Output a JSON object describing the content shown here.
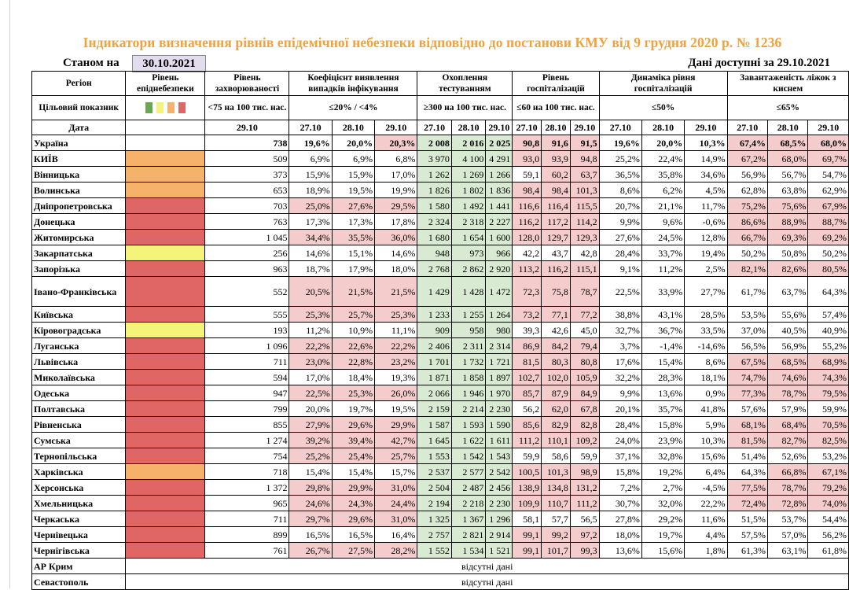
{
  "title": "Індикатори визначення рівнів епідемічної небезпеки відповідно до постанови КМУ від 9 грудня 2020 р. № 1236",
  "as_of_label": "Станом на",
  "as_of_date": "30.10.2021",
  "available_label": "Дані доступні за  29.10.2021",
  "colors": {
    "red": "#e06666",
    "orange": "#f6b26b",
    "yellow": "#f4f47a",
    "highlight": "#f4cccc",
    "green": "#d9ead3",
    "green_swatch": "#6aa84f"
  },
  "header": {
    "region": "Регіон",
    "target": "Цільовий показник",
    "date": "Дата",
    "level": "Рівень епіднебезпеки",
    "incidence": "Рівень захворюваності",
    "incidence_target": "<75 на 100 тис. нас.",
    "incidence_date": "29.10",
    "detection": "Коефіцієнт виявлення випадків інфікування",
    "detection_target": "≤20% / <4%",
    "testing": "Охоплення тестуванням",
    "testing_target": "≥300 на 100 тис. нас.",
    "hosp": "Рівень госпіталізацій",
    "hosp_target": "≤60 на 100 тис. нас.",
    "dynamics": "Динаміка рівня госпіталізацій",
    "dynamics_target": "≤50%",
    "beds": "Завантаженість ліжок з киснем",
    "beds_target": "≤65%",
    "dates": [
      "27.10",
      "28.10",
      "29.10"
    ]
  },
  "rows": [
    {
      "name": "Україна",
      "level": "",
      "inc": "738",
      "det": [
        "19,6%",
        "20,0%",
        "20,3%"
      ],
      "tst": [
        "2 008",
        "2 016",
        "2 025"
      ],
      "hos": [
        "90,8",
        "91,6",
        "91,5"
      ],
      "dyn": [
        "19,6%",
        "20,0%",
        "10,3%"
      ],
      "bed": [
        "67,4%",
        "68,5%",
        "68,0%"
      ]
    },
    {
      "name": "КИЇВ",
      "level": "orange",
      "inc": "509",
      "det": [
        "6,9%",
        "6,9%",
        "6,8%"
      ],
      "tst": [
        "3 970",
        "4 100",
        "4 291"
      ],
      "hos": [
        "93,0",
        "93,9",
        "94,8"
      ],
      "dyn": [
        "25,2%",
        "22,4%",
        "14,9%"
      ],
      "bed": [
        "67,2%",
        "68,0%",
        "69,7%"
      ]
    },
    {
      "name": "Вінницька",
      "level": "orange",
      "inc": "373",
      "det": [
        "15,9%",
        "15,9%",
        "17,0%"
      ],
      "tst": [
        "1 262",
        "1 269",
        "1 266"
      ],
      "hos": [
        "59,1",
        "60,2",
        "63,7"
      ],
      "dyn": [
        "36,5%",
        "35,8%",
        "34,6%"
      ],
      "bed": [
        "56,9%",
        "56,7%",
        "54,7%"
      ]
    },
    {
      "name": "Волинська",
      "level": "orange",
      "inc": "653",
      "det": [
        "18,9%",
        "19,5%",
        "19,9%"
      ],
      "tst": [
        "1 826",
        "1 802",
        "1 836"
      ],
      "hos": [
        "98,4",
        "98,4",
        "101,3"
      ],
      "dyn": [
        "8,6%",
        "6,2%",
        "4,5%"
      ],
      "bed": [
        "62,8%",
        "63,8%",
        "62,9%"
      ]
    },
    {
      "name": "Дніпропетровська",
      "level": "red",
      "inc": "703",
      "det": [
        "25,0%",
        "27,6%",
        "29,5%"
      ],
      "tst": [
        "1 580",
        "1 492",
        "1 441"
      ],
      "hos": [
        "116,6",
        "116,4",
        "115,5"
      ],
      "dyn": [
        "20,7%",
        "21,1%",
        "11,7%"
      ],
      "bed": [
        "75,2%",
        "75,6%",
        "67,9%"
      ]
    },
    {
      "name": "Донецька",
      "level": "red",
      "inc": "763",
      "det": [
        "17,3%",
        "17,3%",
        "17,8%"
      ],
      "tst": [
        "2 324",
        "2 318",
        "2 227"
      ],
      "hos": [
        "116,2",
        "117,2",
        "114,2"
      ],
      "dyn": [
        "9,9%",
        "9,6%",
        "-0,6%"
      ],
      "bed": [
        "86,6%",
        "88,9%",
        "88,7%"
      ]
    },
    {
      "name": "Житомирська",
      "level": "red",
      "inc": "1 045",
      "det": [
        "34,4%",
        "35,5%",
        "36,0%"
      ],
      "tst": [
        "1 680",
        "1 654",
        "1 600"
      ],
      "hos": [
        "128,0",
        "129,7",
        "129,3"
      ],
      "dyn": [
        "27,6%",
        "24,5%",
        "12,8%"
      ],
      "bed": [
        "66,7%",
        "69,3%",
        "69,2%"
      ]
    },
    {
      "name": "Закарпатська",
      "level": "yellow",
      "inc": "256",
      "det": [
        "14,6%",
        "15,1%",
        "14,6%"
      ],
      "tst": [
        "948",
        "973",
        "966"
      ],
      "hos": [
        "42,2",
        "43,7",
        "42,8"
      ],
      "dyn": [
        "28,4%",
        "33,7%",
        "19,4%"
      ],
      "bed": [
        "50,2%",
        "50,8%",
        "50,2%"
      ]
    },
    {
      "name": "Запорізька",
      "level": "red",
      "inc": "963",
      "det": [
        "18,7%",
        "17,9%",
        "18,0%"
      ],
      "tst": [
        "2 768",
        "2 862",
        "2 920"
      ],
      "hos": [
        "113,2",
        "116,2",
        "115,1"
      ],
      "dyn": [
        "9,1%",
        "11,2%",
        "2,5%"
      ],
      "bed": [
        "82,1%",
        "82,6%",
        "80,5%"
      ]
    },
    {
      "name": "Івано-Франківська",
      "level": "red",
      "inc": "552",
      "det": [
        "20,5%",
        "21,5%",
        "21,5%"
      ],
      "tst": [
        "1 429",
        "1 428",
        "1 472"
      ],
      "hos": [
        "72,3",
        "75,8",
        "78,7"
      ],
      "dyn": [
        "22,5%",
        "33,9%",
        "27,7%"
      ],
      "bed": [
        "61,7%",
        "63,7%",
        "64,3%"
      ]
    },
    {
      "name": "Київська",
      "level": "red",
      "inc": "555",
      "det": [
        "25,3%",
        "25,7%",
        "25,3%"
      ],
      "tst": [
        "1 233",
        "1 255",
        "1 264"
      ],
      "hos": [
        "73,2",
        "77,1",
        "77,2"
      ],
      "dyn": [
        "38,8%",
        "43,1%",
        "28,5%"
      ],
      "bed": [
        "53,5%",
        "55,6%",
        "57,4%"
      ]
    },
    {
      "name": "Кіровоградська",
      "level": "yellow",
      "inc": "193",
      "det": [
        "11,2%",
        "10,9%",
        "11,1%"
      ],
      "tst": [
        "909",
        "958",
        "980"
      ],
      "hos": [
        "39,3",
        "42,6",
        "45,0"
      ],
      "dyn": [
        "32,7%",
        "36,7%",
        "33,5%"
      ],
      "bed": [
        "37,0%",
        "40,5%",
        "40,9%"
      ]
    },
    {
      "name": "Луганська",
      "level": "red",
      "inc": "1 096",
      "det": [
        "22,2%",
        "22,6%",
        "22,2%"
      ],
      "tst": [
        "2 406",
        "2 311",
        "2 314"
      ],
      "hos": [
        "86,9",
        "84,2",
        "79,4"
      ],
      "dyn": [
        "3,7%",
        "-1,4%",
        "-14,6%"
      ],
      "bed": [
        "56,5%",
        "56,9%",
        "55,2%"
      ]
    },
    {
      "name": "Львівська",
      "level": "red",
      "inc": "711",
      "det": [
        "23,0%",
        "22,8%",
        "23,2%"
      ],
      "tst": [
        "1 701",
        "1 732",
        "1 721"
      ],
      "hos": [
        "81,5",
        "80,3",
        "80,8"
      ],
      "dyn": [
        "17,6%",
        "15,4%",
        "8,6%"
      ],
      "bed": [
        "67,5%",
        "68,5%",
        "68,9%"
      ]
    },
    {
      "name": "Миколаївська",
      "level": "red",
      "inc": "594",
      "det": [
        "17,0%",
        "18,4%",
        "19,3%"
      ],
      "tst": [
        "1 871",
        "1 858",
        "1 897"
      ],
      "hos": [
        "102,7",
        "102,0",
        "105,9"
      ],
      "dyn": [
        "32,2%",
        "28,3%",
        "18,1%"
      ],
      "bed": [
        "74,7%",
        "74,6%",
        "74,3%"
      ]
    },
    {
      "name": "Одеська",
      "level": "red",
      "inc": "947",
      "det": [
        "22,5%",
        "25,3%",
        "26,0%"
      ],
      "tst": [
        "2 066",
        "1 946",
        "1 970"
      ],
      "hos": [
        "85,7",
        "87,9",
        "84,9"
      ],
      "dyn": [
        "9,9%",
        "13,6%",
        "0,9%"
      ],
      "bed": [
        "77,3%",
        "78,7%",
        "79,5%"
      ]
    },
    {
      "name": "Полтавська",
      "level": "red",
      "inc": "799",
      "det": [
        "20,0%",
        "19,7%",
        "19,5%"
      ],
      "tst": [
        "2 159",
        "2 214",
        "2 230"
      ],
      "hos": [
        "56,2",
        "62,0",
        "67,8"
      ],
      "dyn": [
        "20,1%",
        "35,7%",
        "41,8%"
      ],
      "bed": [
        "57,6%",
        "57,9%",
        "59,9%"
      ]
    },
    {
      "name": "Рівненська",
      "level": "red",
      "inc": "855",
      "det": [
        "27,9%",
        "29,6%",
        "29,9%"
      ],
      "tst": [
        "1 587",
        "1 593",
        "1 590"
      ],
      "hos": [
        "85,6",
        "82,9",
        "82,8"
      ],
      "dyn": [
        "28,4%",
        "15,8%",
        "5,9%"
      ],
      "bed": [
        "68,1%",
        "68,4%",
        "70,5%"
      ]
    },
    {
      "name": "Сумська",
      "level": "red",
      "inc": "1 274",
      "det": [
        "39,2%",
        "39,4%",
        "42,7%"
      ],
      "tst": [
        "1 645",
        "1 622",
        "1 611"
      ],
      "hos": [
        "111,2",
        "110,1",
        "109,2"
      ],
      "dyn": [
        "24,0%",
        "23,9%",
        "10,3%"
      ],
      "bed": [
        "81,5%",
        "82,7%",
        "82,5%"
      ]
    },
    {
      "name": "Тернопільська",
      "level": "red",
      "inc": "754",
      "det": [
        "25,2%",
        "25,4%",
        "25,7%"
      ],
      "tst": [
        "1 553",
        "1 542",
        "1 543"
      ],
      "hos": [
        "59,9",
        "58,6",
        "59,9"
      ],
      "dyn": [
        "37,1%",
        "32,8%",
        "15,6%"
      ],
      "bed": [
        "51,4%",
        "52,6%",
        "53,2%"
      ]
    },
    {
      "name": "Харківська",
      "level": "orange",
      "inc": "718",
      "det": [
        "15,4%",
        "15,4%",
        "15,7%"
      ],
      "tst": [
        "2 537",
        "2 577",
        "2 542"
      ],
      "hos": [
        "100,5",
        "101,3",
        "98,9"
      ],
      "dyn": [
        "15,8%",
        "19,2%",
        "6,4%"
      ],
      "bed": [
        "64,3%",
        "66,8%",
        "67,1%"
      ]
    },
    {
      "name": "Херсонська",
      "level": "red",
      "inc": "1 372",
      "det": [
        "29,8%",
        "29,9%",
        "31,0%"
      ],
      "tst": [
        "2 504",
        "2 487",
        "2 456"
      ],
      "hos": [
        "138,9",
        "134,8",
        "131,2"
      ],
      "dyn": [
        "7,2%",
        "2,7%",
        "-4,5%"
      ],
      "bed": [
        "77,5%",
        "78,7%",
        "79,2%"
      ]
    },
    {
      "name": "Хмельницька",
      "level": "red",
      "inc": "965",
      "det": [
        "24,6%",
        "24,3%",
        "24,4%"
      ],
      "tst": [
        "2 194",
        "2 218",
        "2 230"
      ],
      "hos": [
        "109,9",
        "110,7",
        "111,2"
      ],
      "dyn": [
        "30,7%",
        "32,0%",
        "22,2%"
      ],
      "bed": [
        "72,4%",
        "72,8%",
        "74,0%"
      ]
    },
    {
      "name": "Черкаська",
      "level": "red",
      "inc": "711",
      "det": [
        "29,7%",
        "29,6%",
        "31,0%"
      ],
      "tst": [
        "1 325",
        "1 367",
        "1 296"
      ],
      "hos": [
        "58,1",
        "57,7",
        "56,5"
      ],
      "dyn": [
        "27,8%",
        "29,2%",
        "11,6%"
      ],
      "bed": [
        "51,5%",
        "53,7%",
        "54,4%"
      ]
    },
    {
      "name": "Чернівецька",
      "level": "red",
      "inc": "899",
      "det": [
        "16,5%",
        "16,5%",
        "16,4%"
      ],
      "tst": [
        "2 757",
        "2 821",
        "2 914"
      ],
      "hos": [
        "99,1",
        "99,2",
        "97,2"
      ],
      "dyn": [
        "18,0%",
        "19,7%",
        "4,4%"
      ],
      "bed": [
        "57,5%",
        "57,0%",
        "56,2%"
      ]
    },
    {
      "name": "Чернігівська",
      "level": "red",
      "inc": "761",
      "det": [
        "26,7%",
        "27,5%",
        "28,2%"
      ],
      "tst": [
        "1 552",
        "1 534",
        "1 521"
      ],
      "hos": [
        "99,1",
        "101,7",
        "99,3"
      ],
      "dyn": [
        "13,6%",
        "15,6%",
        "1,8%"
      ],
      "bed": [
        "61,3%",
        "63,1%",
        "61,8%"
      ]
    }
  ],
  "nodata_rows": [
    {
      "name": "АР Крим",
      "text": "відсутні дані"
    },
    {
      "name": "Севастополь",
      "text": "відсутні дані"
    }
  ]
}
